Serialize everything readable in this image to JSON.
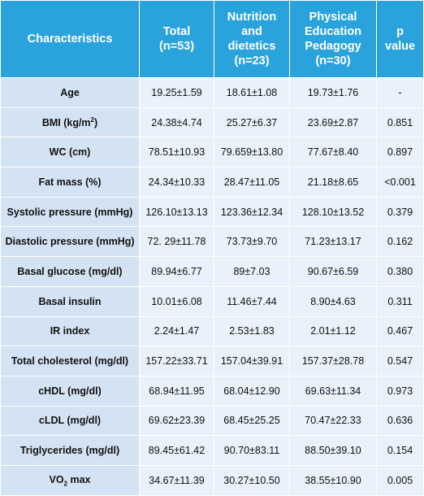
{
  "header": {
    "characteristics": "Characteristics",
    "total": "Total\n(n=53)",
    "nutrition": "Nutrition\nand\ndietetics\n(n=23)",
    "physical": "Physical\nEducation\nPedagogy\n(n=30)",
    "p_value": "p\nvalue"
  },
  "rows": [
    {
      "label": "Age",
      "total": "19.25±1.59",
      "nutrition": "18.61±1.08",
      "physical": "19.73±1.76",
      "p": "-"
    },
    {
      "label": "BMI (kg/m",
      "label_sup": "2",
      "label_tail": ")",
      "total": "24.38±4.74",
      "nutrition": "25.27±6.37",
      "physical": "23.69±2.87",
      "p": "0.851"
    },
    {
      "label": "WC (cm)",
      "total": "78.51±10.93",
      "nutrition": "79.659±13.80",
      "physical": "77.67±8.40",
      "p": "0.897"
    },
    {
      "label": "Fat mass (%)",
      "total": "24.34±10.33",
      "nutrition": "28.47±11.05",
      "physical": "21.18±8.65",
      "p": "<0.001"
    },
    {
      "label": "Systolic pressure (mmHg)",
      "total": "126.10±13.13",
      "nutrition": "123.36±12.34",
      "physical": "128.10±13.52",
      "p": "0.379"
    },
    {
      "label": "Diastolic pressure (mmHg)",
      "total": "72. 29±11.78",
      "nutrition": "73.73±9.70",
      "physical": "71.23±13.17",
      "p": "0.162"
    },
    {
      "label": "Basal glucose (mg/dl)",
      "total": "89.94±6.77",
      "nutrition": "89±7.03",
      "physical": "90.67±6.59",
      "p": "0.380"
    },
    {
      "label": "Basal insulin",
      "total": "10.01±6.08",
      "nutrition": "11.46±7.44",
      "physical": "8.90±4.63",
      "p": "0.311"
    },
    {
      "label": "IR index",
      "total": "2.24±1.47",
      "nutrition": "2.53±1.83",
      "physical": "2.01±1.12",
      "p": "0.467"
    },
    {
      "label": "Total cholesterol (mg/dl)",
      "total": "157.22±33.71",
      "nutrition": "157.04±39.91",
      "physical": "157.37±28.78",
      "p": "0.547"
    },
    {
      "label": "cHDL (mg/dl)",
      "total": "68.94±11.95",
      "nutrition": "68.04±12.90",
      "physical": "69.63±11.34",
      "p": "0.973"
    },
    {
      "label": "cLDL (mg/dl)",
      "total": "69.62±23.39",
      "nutrition": "68.45±25.25",
      "physical": "70.47±22.33",
      "p": "0.636"
    },
    {
      "label": "Triglycerides (mg/dl)",
      "total": "89.45±61.42",
      "nutrition": "90.70±83.11",
      "physical": "88.50±39.10",
      "p": "0.154"
    },
    {
      "label": "VO",
      "label_sub": "2",
      "label_tail": " max",
      "total": "34.67±11.39",
      "nutrition": "30.27±10.50",
      "physical": "38.55±10.90",
      "p": "0.005"
    }
  ],
  "colors": {
    "header_bg": "#2aa3dc",
    "label_bg": "#d4e3f3",
    "cell_bg": "#e9f1fa"
  }
}
